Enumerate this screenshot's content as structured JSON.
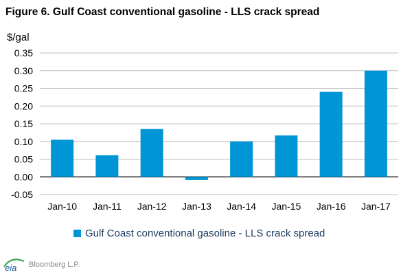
{
  "chart_data": {
    "type": "bar",
    "title": "Figure 6. Gulf Coast conventional gasoline - LLS crack spread",
    "ylabel": "$/gal",
    "xlabel": "",
    "categories": [
      "Jan-10",
      "Jan-11",
      "Jan-12",
      "Jan-13",
      "Jan-14",
      "Jan-15",
      "Jan-16",
      "Jan-17"
    ],
    "series": [
      {
        "name": "Gulf Coast conventional gasoline - LLS crack spread",
        "values": [
          0.105,
          0.061,
          0.135,
          -0.009,
          0.1,
          0.117,
          0.24,
          0.3
        ],
        "color": "#0096d6"
      }
    ],
    "ylim": [
      -0.05,
      0.35
    ],
    "yticks": [
      -0.05,
      0.0,
      0.05,
      0.1,
      0.15,
      0.2,
      0.25,
      0.3,
      0.35
    ],
    "ytick_labels": [
      "-0.05",
      "0.00",
      "0.05",
      "0.10",
      "0.15",
      "0.20",
      "0.25",
      "0.30",
      "0.35"
    ],
    "grid": true,
    "legend_position": "bottom"
  },
  "footer": {
    "logo_icon": "eia-logo-icon",
    "logo_text": "eia",
    "source": "Bloomberg L.P."
  },
  "colors": {
    "bar": "#0096d6",
    "grid": "#bfbfbf",
    "axis": "#000000",
    "logo_blue": "#1f5f9e",
    "logo_green": "#3aa655"
  }
}
